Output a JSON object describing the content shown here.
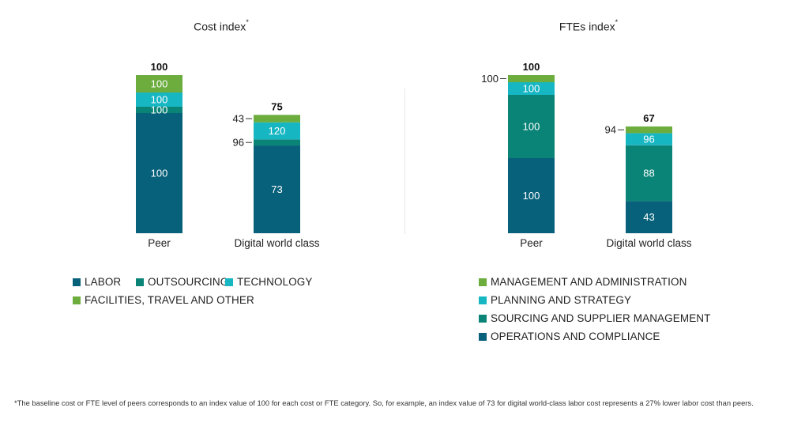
{
  "chart_data": [
    {
      "type": "bar",
      "stacked": true,
      "title": "Cost index",
      "title_marker": "*",
      "categories": [
        "Peer",
        "Digital world class"
      ],
      "totals": [
        100,
        75
      ],
      "series": [
        {
          "name": "LABOR",
          "color": "#07617a",
          "peer_share": 0.76,
          "values": [
            100,
            73
          ]
        },
        {
          "name": "OUTSOURCING",
          "color": "#0b8478",
          "peer_share": 0.04,
          "values": [
            100,
            96
          ]
        },
        {
          "name": "TECHNOLOGY",
          "color": "#17b6c3",
          "peer_share": 0.09,
          "values": [
            100,
            120
          ]
        },
        {
          "name": "FACILITIES, TRAVEL AND OTHER",
          "color": "#6cad3e",
          "peer_share": 0.11,
          "values": [
            100,
            43
          ]
        }
      ],
      "outside_labels": [
        {
          "category": "Digital world class",
          "series": "FACILITIES, TRAVEL AND OTHER"
        },
        {
          "category": "Digital world class",
          "series": "OUTSOURCING"
        }
      ],
      "legend": {
        "placement": "bottom-left",
        "rows": [
          [
            "LABOR",
            "OUTSOURCING",
            "TECHNOLOGY"
          ],
          [
            "FACILITIES, TRAVEL AND OTHER"
          ]
        ]
      },
      "xlabel": "",
      "ylabel": "",
      "grid": false,
      "ylim": [
        0,
        100
      ]
    },
    {
      "type": "bar",
      "stacked": true,
      "title": "FTEs index",
      "title_marker": "*",
      "categories": [
        "Peer",
        "Digital world class"
      ],
      "totals": [
        100,
        67
      ],
      "series": [
        {
          "name": "OPERATIONS AND COMPLIANCE",
          "color": "#07617a",
          "peer_share": 0.475,
          "values": [
            100,
            43
          ]
        },
        {
          "name": "SOURCING AND SUPPLIER MANAGEMENT",
          "color": "#0b8478",
          "peer_share": 0.4,
          "values": [
            100,
            88
          ]
        },
        {
          "name": "PLANNING AND STRATEGY",
          "color": "#17b6c3",
          "peer_share": 0.08,
          "values": [
            100,
            96
          ]
        },
        {
          "name": "MANAGEMENT AND ADMINISTRATION",
          "color": "#6cad3e",
          "peer_share": 0.045,
          "values": [
            100,
            94
          ]
        }
      ],
      "outside_labels": [
        {
          "category": "Peer",
          "series": "MANAGEMENT AND ADMINISTRATION"
        },
        {
          "category": "Digital world class",
          "series": "MANAGEMENT AND ADMINISTRATION"
        }
      ],
      "legend": {
        "placement": "bottom-right",
        "rows": [
          [
            "MANAGEMENT AND ADMINISTRATION"
          ],
          [
            "PLANNING AND STRATEGY"
          ],
          [
            "SOURCING AND SUPPLIER MANAGEMENT"
          ],
          [
            "OPERATIONS AND COMPLIANCE"
          ]
        ]
      },
      "xlabel": "",
      "ylabel": "",
      "grid": false,
      "ylim": [
        0,
        100
      ]
    }
  ],
  "footnote": "*The baseline cost or FTE level of peers corresponds to an index value of 100 for each cost or FTE category. So, for example, an index value of 73 for digital world-class labor cost represents a 27% lower labor cost than peers."
}
